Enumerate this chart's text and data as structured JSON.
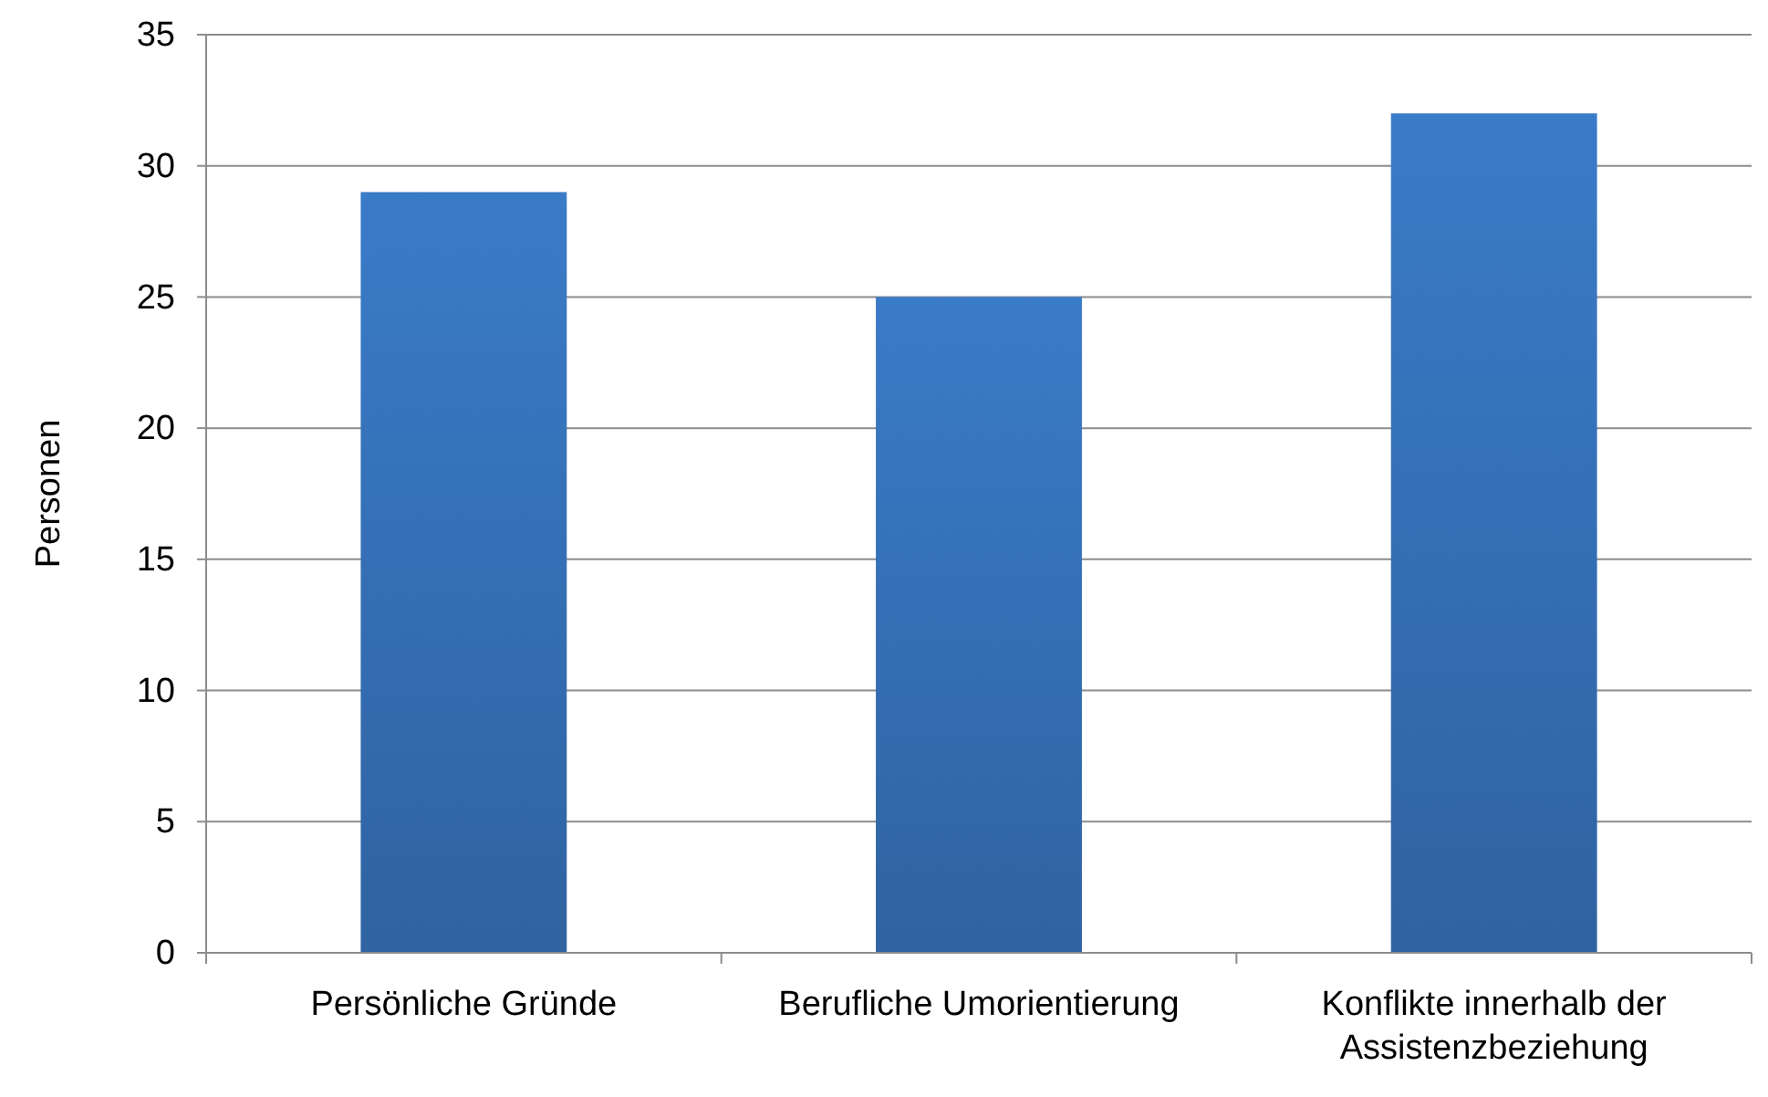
{
  "chart_data": {
    "type": "bar",
    "ylabel": "Personen",
    "categories": [
      "Persönliche Gründe",
      "Berufliche Umorientierung",
      "Konflikte innerhalb der Assistenzbeziehung"
    ],
    "values": [
      29,
      25,
      32
    ],
    "color": "#3a7bc8",
    "ylim": [
      0,
      35
    ],
    "yticks": [
      0,
      5,
      10,
      15,
      20,
      25,
      30,
      35
    ],
    "grid": "y"
  }
}
